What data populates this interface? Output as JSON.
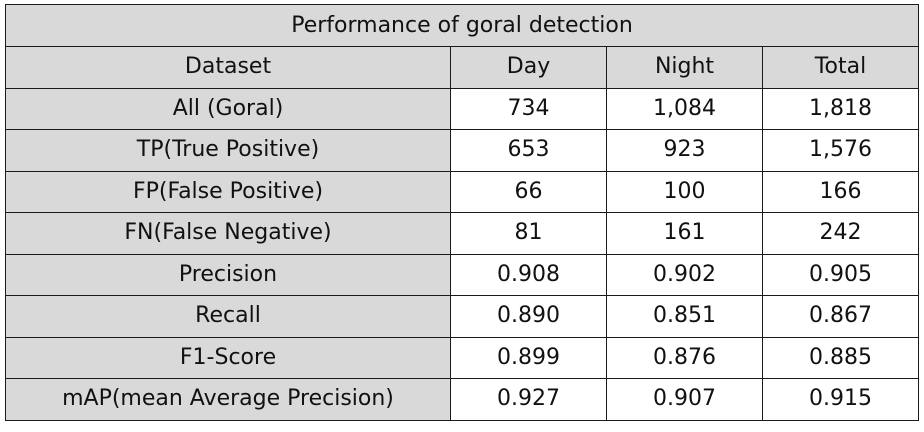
{
  "table": {
    "title": "Performance of goral detection",
    "headers": [
      "Dataset",
      "Day",
      "Night",
      "Total"
    ],
    "rows": [
      {
        "label": "All (Goral)",
        "day": "734",
        "night": "1,084",
        "total": "1,818"
      },
      {
        "label": "TP(True Positive)",
        "day": "653",
        "night": "923",
        "total": "1,576"
      },
      {
        "label": "FP(False Positive)",
        "day": "66",
        "night": "100",
        "total": "166"
      },
      {
        "label": "FN(False Negative)",
        "day": "81",
        "night": "161",
        "total": "242"
      },
      {
        "label": "Precision",
        "day": "0.908",
        "night": "0.902",
        "total": "0.905"
      },
      {
        "label": "Recall",
        "day": "0.890",
        "night": "0.851",
        "total": "0.867"
      },
      {
        "label": "F1-Score",
        "day": "0.899",
        "night": "0.876",
        "total": "0.885"
      },
      {
        "label": "mAP(mean Average Precision)",
        "day": "0.927",
        "night": "0.907",
        "total": "0.915"
      }
    ]
  },
  "colors": {
    "header_fill": "#d9d9d9",
    "cell_fill": "#ffffff",
    "border": "#1a1a1a"
  }
}
